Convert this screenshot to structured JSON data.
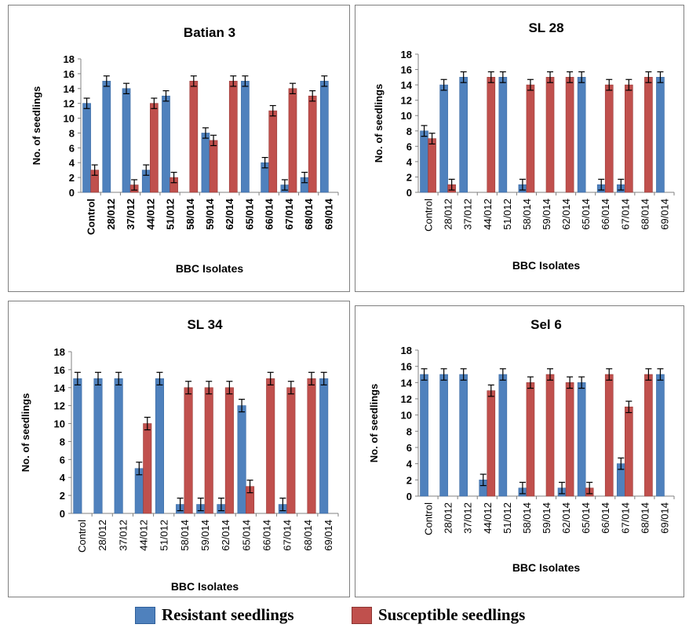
{
  "legend": {
    "resistant": "Resistant seedlings",
    "susceptible": "Susceptible seedlings"
  },
  "colors": {
    "resistant": "#4f81bd",
    "susceptible": "#c0504d",
    "errorbar": "#000000"
  },
  "chart_data": [
    {
      "type": "bar",
      "title": "Batian 3",
      "xlabel": "BBC Isolates",
      "ylabel": "No. of seedlings",
      "ylim": [
        0,
        18
      ],
      "yticks": [
        0,
        2,
        4,
        6,
        8,
        10,
        12,
        14,
        16,
        18
      ],
      "categories": [
        "Control",
        "28/012",
        "37/012",
        "44/012",
        "51/012",
        "58/014",
        "59/014",
        "62/014",
        "65/014",
        "66/014",
        "67/014",
        "68/014",
        "69/014"
      ],
      "tick_style": "bold",
      "series": [
        {
          "name": "Resistant seedlings",
          "values": [
            12,
            15,
            14,
            3,
            13,
            0,
            8,
            0,
            15,
            4,
            1,
            2,
            15
          ]
        },
        {
          "name": "Susceptible seedlings",
          "values": [
            3,
            0,
            1,
            12,
            2,
            15,
            7,
            15,
            0,
            11,
            14,
            13,
            0
          ]
        }
      ]
    },
    {
      "type": "bar",
      "title": "SL 28",
      "xlabel": "BBC Isolates",
      "ylabel": "No. of seedlings",
      "ylim": [
        0,
        18
      ],
      "yticks": [
        0,
        2,
        4,
        6,
        8,
        10,
        12,
        14,
        16,
        18
      ],
      "categories": [
        "Control",
        "28/012",
        "37/012",
        "44/012",
        "51/012",
        "58/014",
        "59/014",
        "62/014",
        "65/014",
        "66/014",
        "67/014",
        "68/014",
        "69/014"
      ],
      "tick_style": "normal",
      "series": [
        {
          "name": "Resistant seedlings",
          "values": [
            8,
            14,
            15,
            0,
            15,
            1,
            0,
            0,
            15,
            1,
            1,
            0,
            15
          ]
        },
        {
          "name": "Susceptible seedlings",
          "values": [
            7,
            1,
            0,
            15,
            0,
            14,
            15,
            15,
            0,
            14,
            14,
            15,
            0
          ]
        }
      ]
    },
    {
      "type": "bar",
      "title": "SL 34",
      "xlabel": "BBC Isolates",
      "ylabel": "No. of seedlings",
      "ylim": [
        0,
        18
      ],
      "yticks": [
        0,
        2,
        4,
        6,
        8,
        10,
        12,
        14,
        16,
        18
      ],
      "categories": [
        "Control",
        "28/012",
        "37/012",
        "44/012",
        "51/012",
        "58/014",
        "59/014",
        "62/014",
        "65/014",
        "66/014",
        "67/014",
        "68/014",
        "69/014"
      ],
      "tick_style": "normal",
      "series": [
        {
          "name": "Resistant seedlings",
          "values": [
            15,
            15,
            15,
            5,
            15,
            1,
            1,
            1,
            12,
            0,
            1,
            0,
            15
          ]
        },
        {
          "name": "Susceptible seedlings",
          "values": [
            0,
            0,
            0,
            10,
            0,
            14,
            14,
            14,
            3,
            15,
            14,
            15,
            0
          ]
        }
      ]
    },
    {
      "type": "bar",
      "title": "Sel 6",
      "xlabel": "BBC Isolates",
      "ylabel": "No. of seedlings",
      "ylim": [
        0,
        18
      ],
      "yticks": [
        0,
        2,
        4,
        6,
        8,
        10,
        12,
        14,
        16,
        18
      ],
      "categories": [
        "Control",
        "28/012",
        "37/012",
        "44/012",
        "51/012",
        "58/014",
        "59/014",
        "62/014",
        "65/014",
        "66/014",
        "67/014",
        "68/014",
        "69/014"
      ],
      "tick_style": "normal",
      "series": [
        {
          "name": "Resistant seedlings",
          "values": [
            15,
            15,
            15,
            2,
            15,
            1,
            0,
            1,
            14,
            0,
            4,
            0,
            15
          ]
        },
        {
          "name": "Susceptible seedlings",
          "values": [
            0,
            0,
            0,
            13,
            0,
            14,
            15,
            14,
            1,
            15,
            11,
            15,
            0
          ]
        }
      ]
    }
  ]
}
